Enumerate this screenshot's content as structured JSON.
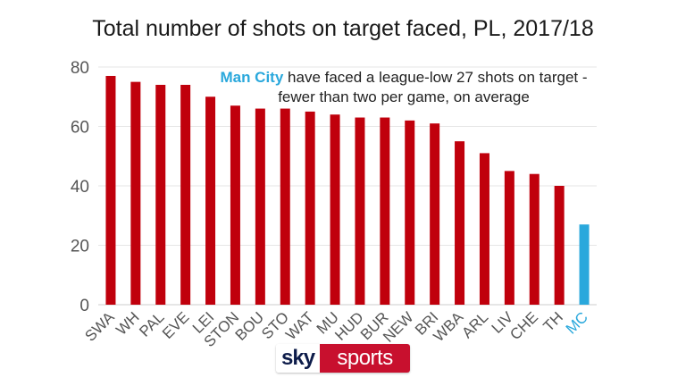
{
  "chart_data": {
    "type": "bar",
    "title": "Total number of shots on target faced, PL, 2017/18",
    "categories": [
      "SWA",
      "WH",
      "PAL",
      "EVE",
      "LEI",
      "STON",
      "BOU",
      "STO",
      "WAT",
      "MU",
      "HUD",
      "BUR",
      "NEW",
      "BRI",
      "WBA",
      "ARL",
      "LIV",
      "CHE",
      "TH",
      "MC"
    ],
    "values": [
      77,
      75,
      74,
      74,
      70,
      67,
      66,
      66,
      65,
      64,
      63,
      63,
      62,
      61,
      55,
      51,
      45,
      44,
      40,
      27
    ],
    "ylim": [
      0,
      80
    ],
    "yticks": [
      0,
      20,
      40,
      60,
      80
    ],
    "grid": true,
    "legend": "none",
    "colors": {
      "default": "#c0000c",
      "highlight": "#2aa8dc",
      "highlight_category": "MC"
    },
    "annotation": {
      "highlight": "Man City",
      "text": "have faced a league-low 27 shots on target - fewer than two per game, on average"
    }
  },
  "branding": {
    "logo_sky": "sky",
    "logo_sports": "sports"
  }
}
